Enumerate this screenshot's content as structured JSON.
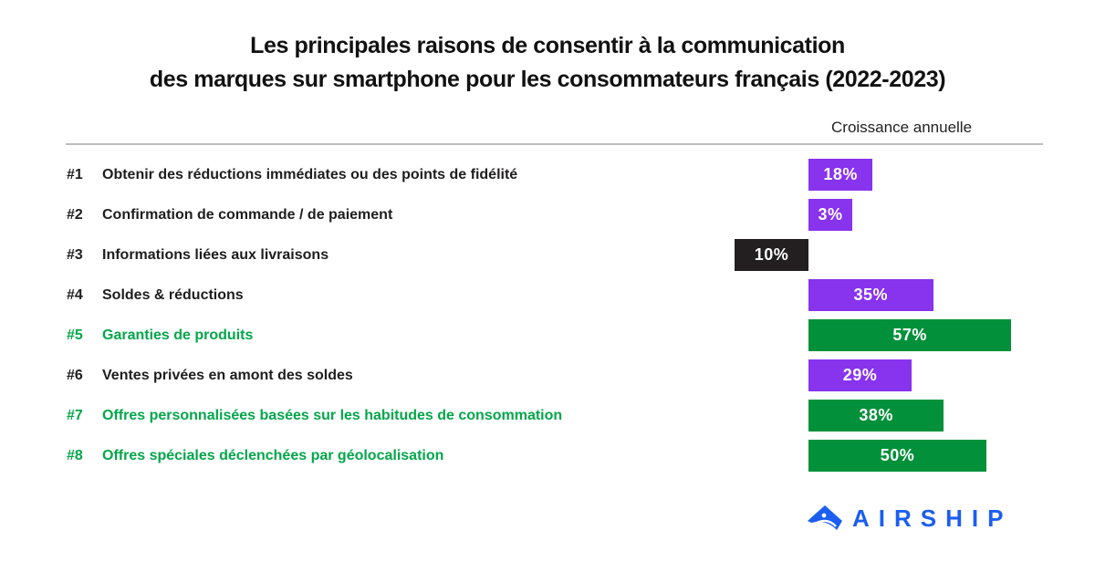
{
  "title_line1": "Les principales raisons de consentir à la communication",
  "title_line2": "des marques sur smartphone pour les consommateurs français (2022-2023)",
  "column_header": "Croissance annuelle",
  "colors": {
    "purple": "#8833ee",
    "green": "#02913a",
    "black": "#231f20",
    "green_text": "#03a64a",
    "brand_blue": "#1b5ef0"
  },
  "rows": [
    {
      "rank": "#1",
      "label": "Obtenir des réductions immédiates ou des points de fidélité",
      "value": "18%",
      "color": "purple",
      "text_color": "black"
    },
    {
      "rank": "#2",
      "label": "Confirmation de commande / de paiement",
      "value": "3%",
      "color": "purple",
      "text_color": "black"
    },
    {
      "rank": "#3",
      "label": "Informations liées aux livraisons",
      "value": "10%",
      "color": "black",
      "text_color": "black"
    },
    {
      "rank": "#4",
      "label": "Soldes & réductions",
      "value": "35%",
      "color": "purple",
      "text_color": "black"
    },
    {
      "rank": "#5",
      "label": "Garanties de produits",
      "value": "57%",
      "color": "green",
      "text_color": "green"
    },
    {
      "rank": "#6",
      "label": "Ventes privées en amont des soldes",
      "value": "29%",
      "color": "purple",
      "text_color": "black"
    },
    {
      "rank": "#7",
      "label": "Offres personnalisées basées sur les habitudes de consommation",
      "value": "38%",
      "color": "green",
      "text_color": "green"
    },
    {
      "rank": "#8",
      "label": "Offres spéciales déclenchées par géolocalisation",
      "value": "50%",
      "color": "green",
      "text_color": "green"
    }
  ],
  "logo": {
    "text": "AIRSHIP",
    "icon": "airship-logo-icon"
  },
  "chart_data": {
    "type": "bar",
    "orientation": "horizontal",
    "title": "Les principales raisons de consentir à la communication des marques sur smartphone pour les consommateurs français (2022-2023)",
    "xlabel": "Croissance annuelle",
    "ylabel": "",
    "categories": [
      "#1 Obtenir des réductions immédiates ou des points de fidélité",
      "#2 Confirmation de commande / de paiement",
      "#3 Informations liées aux livraisons",
      "#4 Soldes & réductions",
      "#5 Garanties de produits",
      "#6 Ventes privées en amont des soldes",
      "#7 Offres personnalisées basées sur les habitudes de consommation",
      "#8 Offres spéciales déclenchées par géolocalisation"
    ],
    "values": [
      18,
      3,
      -10,
      35,
      57,
      29,
      38,
      50
    ],
    "value_labels": [
      "18%",
      "3%",
      "10%",
      "35%",
      "57%",
      "29%",
      "38%",
      "50%"
    ],
    "bar_colors": [
      "#8833ee",
      "#8833ee",
      "#231f20",
      "#8833ee",
      "#02913a",
      "#8833ee",
      "#02913a",
      "#02913a"
    ],
    "unit": "%",
    "grid": false,
    "legend": null
  }
}
